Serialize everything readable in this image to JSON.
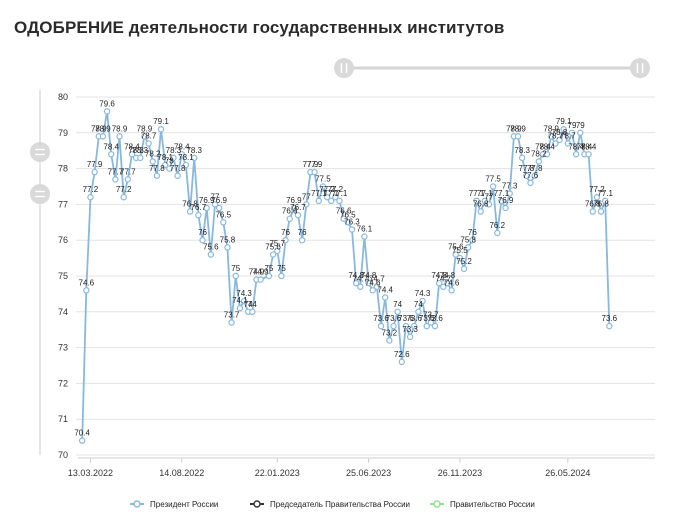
{
  "title": "ОДОБРЕНИЕ деятельности государственных институтов",
  "colors": {
    "president": "#8ab8dc",
    "president_marker_fill": "#ffffff",
    "chairman": "#333333",
    "government": "#90e090",
    "grid": "#e3e3e3",
    "scroll": "#cccccc"
  },
  "chart_data": {
    "type": "line",
    "title": "ОДОБРЕНИЕ деятельности государственных институтов",
    "ylim": [
      70,
      80
    ],
    "yticks": [
      "70",
      "71",
      "72",
      "73",
      "74",
      "75",
      "76",
      "77",
      "78",
      "79",
      "80"
    ],
    "xlim": [
      "2022-02-20",
      "2024-10-20"
    ],
    "xticks": [
      "13.03.2022",
      "14.08.2022",
      "22.01.2023",
      "25.06.2023",
      "26.11.2023",
      "26.05.2024"
    ],
    "grid": true,
    "legend_position": "bottom",
    "series": [
      {
        "name": "Президент России",
        "points": [
          [
            "2022-02-27",
            70.4
          ],
          [
            "2022-03-06",
            74.6
          ],
          [
            "2022-03-13",
            77.2
          ],
          [
            "2022-03-20",
            77.9
          ],
          [
            "2022-03-27",
            78.9
          ],
          [
            "2022-04-03",
            78.9
          ],
          [
            "2022-04-10",
            79.6
          ],
          [
            "2022-04-17",
            78.4
          ],
          [
            "2022-04-24",
            77.7
          ],
          [
            "2022-05-01",
            78.9
          ],
          [
            "2022-05-08",
            77.2
          ],
          [
            "2022-05-15",
            77.7
          ],
          [
            "2022-05-22",
            78.4
          ],
          [
            "2022-05-29",
            78.3
          ],
          [
            "2022-06-05",
            78.3
          ],
          [
            "2022-06-12",
            78.9
          ],
          [
            "2022-06-19",
            78.7
          ],
          [
            "2022-06-26",
            78.2
          ],
          [
            "2022-07-03",
            77.8
          ],
          [
            "2022-07-10",
            79.1
          ],
          [
            "2022-07-17",
            78.1
          ],
          [
            "2022-07-24",
            78.0
          ],
          [
            "2022-07-31",
            78.3
          ],
          [
            "2022-08-07",
            77.8
          ],
          [
            "2022-08-14",
            78.4
          ],
          [
            "2022-08-21",
            78.1
          ],
          [
            "2022-08-28",
            76.8
          ],
          [
            "2022-09-04",
            78.3
          ],
          [
            "2022-09-11",
            76.7
          ],
          [
            "2022-09-18",
            76.0
          ],
          [
            "2022-09-25",
            76.9
          ],
          [
            "2022-10-02",
            75.6
          ],
          [
            "2022-10-09",
            77.0
          ],
          [
            "2022-10-16",
            76.9
          ],
          [
            "2022-10-23",
            76.5
          ],
          [
            "2022-10-30",
            75.8
          ],
          [
            "2022-11-06",
            73.7
          ],
          [
            "2022-11-13",
            75.0
          ],
          [
            "2022-11-20",
            74.1
          ],
          [
            "2022-11-27",
            74.3
          ],
          [
            "2022-12-04",
            74.0
          ],
          [
            "2022-12-11",
            74.0
          ],
          [
            "2022-12-18",
            74.9
          ],
          [
            "2022-12-25",
            74.9
          ],
          [
            "2023-01-08",
            75.0
          ],
          [
            "2023-01-15",
            75.6
          ],
          [
            "2023-01-22",
            75.7
          ],
          [
            "2023-01-29",
            75.0
          ],
          [
            "2023-02-05",
            76.0
          ],
          [
            "2023-02-12",
            76.6
          ],
          [
            "2023-02-19",
            76.9
          ],
          [
            "2023-02-26",
            76.7
          ],
          [
            "2023-03-05",
            76.0
          ],
          [
            "2023-03-12",
            77.0
          ],
          [
            "2023-03-19",
            77.9
          ],
          [
            "2023-03-26",
            77.9
          ],
          [
            "2023-04-02",
            77.1
          ],
          [
            "2023-04-09",
            77.5
          ],
          [
            "2023-04-16",
            77.2
          ],
          [
            "2023-04-23",
            77.1
          ],
          [
            "2023-04-30",
            77.2
          ],
          [
            "2023-05-07",
            77.1
          ],
          [
            "2023-05-14",
            76.6
          ],
          [
            "2023-05-21",
            76.5
          ],
          [
            "2023-05-28",
            76.3
          ],
          [
            "2023-06-04",
            74.8
          ],
          [
            "2023-06-11",
            74.7
          ],
          [
            "2023-06-18",
            76.1
          ],
          [
            "2023-06-25",
            74.8
          ],
          [
            "2023-07-02",
            74.6
          ],
          [
            "2023-07-09",
            74.7
          ],
          [
            "2023-07-16",
            73.6
          ],
          [
            "2023-07-23",
            74.4
          ],
          [
            "2023-07-30",
            73.2
          ],
          [
            "2023-08-06",
            73.6
          ],
          [
            "2023-08-13",
            74.0
          ],
          [
            "2023-08-20",
            72.6
          ],
          [
            "2023-08-27",
            73.6
          ],
          [
            "2023-09-03",
            73.3
          ],
          [
            "2023-09-10",
            73.6
          ],
          [
            "2023-09-17",
            74.0
          ],
          [
            "2023-09-24",
            74.3
          ],
          [
            "2023-10-01",
            73.6
          ],
          [
            "2023-10-08",
            73.7
          ],
          [
            "2023-10-15",
            73.6
          ],
          [
            "2023-10-22",
            74.8
          ],
          [
            "2023-10-29",
            74.7
          ],
          [
            "2023-11-05",
            74.8
          ],
          [
            "2023-11-12",
            74.6
          ],
          [
            "2023-11-19",
            75.6
          ],
          [
            "2023-11-26",
            75.5
          ],
          [
            "2023-12-03",
            75.2
          ],
          [
            "2023-12-10",
            75.8
          ],
          [
            "2023-12-17",
            76.0
          ],
          [
            "2023-12-24",
            77.1
          ],
          [
            "2023-12-31",
            76.8
          ],
          [
            "2024-01-07",
            77.1
          ],
          [
            "2024-01-14",
            77.0
          ],
          [
            "2024-01-21",
            77.5
          ],
          [
            "2024-01-28",
            76.2
          ],
          [
            "2024-02-04",
            77.1
          ],
          [
            "2024-02-11",
            76.9
          ],
          [
            "2024-02-18",
            77.3
          ],
          [
            "2024-02-25",
            78.9
          ],
          [
            "2024-03-03",
            78.9
          ],
          [
            "2024-03-10",
            78.3
          ],
          [
            "2024-03-17",
            77.8
          ],
          [
            "2024-03-24",
            77.6
          ],
          [
            "2024-03-31",
            77.8
          ],
          [
            "2024-04-07",
            78.2
          ],
          [
            "2024-04-14",
            78.4
          ],
          [
            "2024-04-21",
            78.4
          ],
          [
            "2024-04-28",
            78.9
          ],
          [
            "2024-05-05",
            78.7
          ],
          [
            "2024-05-12",
            78.8
          ],
          [
            "2024-05-19",
            79.1
          ],
          [
            "2024-05-26",
            78.7
          ],
          [
            "2024-06-02",
            79.0
          ],
          [
            "2024-06-09",
            78.4
          ],
          [
            "2024-06-16",
            79.0
          ],
          [
            "2024-06-23",
            78.4
          ],
          [
            "2024-06-30",
            78.4
          ],
          [
            "2024-07-07",
            76.8
          ],
          [
            "2024-07-14",
            77.2
          ],
          [
            "2024-07-21",
            76.8
          ],
          [
            "2024-07-28",
            77.1
          ],
          [
            "2024-08-04",
            73.6
          ]
        ]
      },
      {
        "name": "Председатель Правительства России",
        "points": []
      },
      {
        "name": "Правительство России",
        "points": []
      }
    ]
  }
}
